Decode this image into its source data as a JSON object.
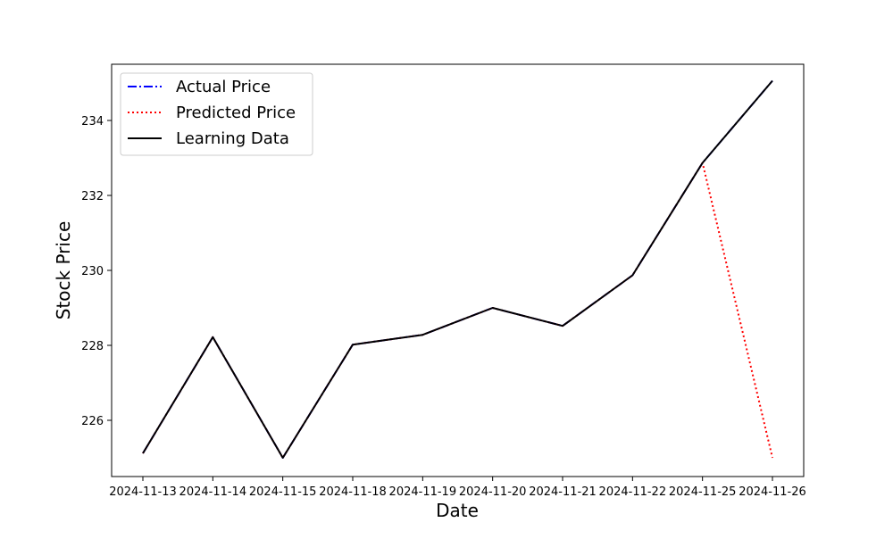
{
  "chart_data": {
    "type": "line",
    "xlabel": "Date",
    "ylabel": "Stock Price",
    "categories": [
      "2024-11-13",
      "2024-11-14",
      "2024-11-15",
      "2024-11-18",
      "2024-11-19",
      "2024-11-20",
      "2024-11-21",
      "2024-11-22",
      "2024-11-25",
      "2024-11-26"
    ],
    "ylim": [
      224.5,
      235.5
    ],
    "yticks": [
      226,
      228,
      230,
      232,
      234
    ],
    "legend_position": "upper-left",
    "grid": false,
    "series": [
      {
        "name": "Actual Price",
        "color": "#0000ff",
        "style": "dash-dot",
        "values": [
          225.12,
          228.22,
          225.0,
          228.02,
          228.28,
          229.0,
          228.52,
          229.87,
          232.87,
          235.06
        ]
      },
      {
        "name": "Predicted Price",
        "color": "#ff0000",
        "style": "dotted",
        "values": [
          225.12,
          228.22,
          225.0,
          228.02,
          228.28,
          229.0,
          228.52,
          229.87,
          232.87,
          225.0
        ]
      },
      {
        "name": "Learning Data",
        "color": "#000000",
        "style": "solid",
        "values": [
          225.12,
          228.22,
          225.0,
          228.02,
          228.28,
          229.0,
          228.52,
          229.87,
          232.87,
          235.06
        ]
      }
    ]
  }
}
